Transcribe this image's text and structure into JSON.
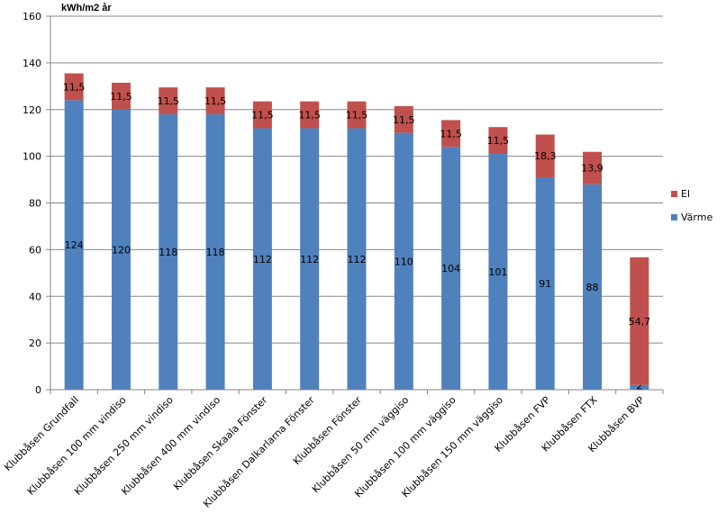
{
  "chart_data": {
    "type": "bar",
    "stacked": true,
    "ylabel": "kWh/m2 år",
    "ylim": [
      0,
      160
    ],
    "yticks": [
      "0",
      "20",
      "40",
      "60",
      "80",
      "100",
      "120",
      "140",
      "160"
    ],
    "grid": true,
    "legend_position": "right",
    "categories": [
      "Klubbåsen Grundfall",
      "Klubbåsen 100 mm vindiso",
      "Klubbåsen 250 mm vindiso",
      "Klubbåsen 400 mm vindiso",
      "Klubbåsen Skaala Fönster",
      "Klubbåsen Dalkarlarna Fönster",
      "Klubbåsen Fönster",
      "Klubbåsen 50 mm väggiso",
      "Klubbåsen 100 mm väggiso",
      "Klubbåsen 150 mm väggiso",
      "Klubbåsen FVP",
      "Klubbåsen FTX",
      "Klubbåsen BVP"
    ],
    "series": [
      {
        "name": "Värme",
        "color": "#4F81BD",
        "values": [
          124,
          120,
          118,
          118,
          112,
          112,
          112,
          110,
          104,
          101,
          91,
          88,
          2
        ],
        "labels": [
          "124",
          "120",
          "118",
          "118",
          "112",
          "112",
          "112",
          "110",
          "104",
          "101",
          "91",
          "88",
          "2"
        ]
      },
      {
        "name": "El",
        "color": "#C0504D",
        "values": [
          11.5,
          11.5,
          11.5,
          11.5,
          11.5,
          11.5,
          11.5,
          11.5,
          11.5,
          11.5,
          18.3,
          13.9,
          54.7
        ],
        "labels": [
          "11,5",
          "11,5",
          "11,5",
          "11,5",
          "11,5",
          "11,5",
          "11,5",
          "11,5",
          "11,5",
          "11,5",
          "18,3",
          "13,9",
          "54,7"
        ]
      }
    ],
    "legend_order": [
      "El",
      "Värme"
    ]
  }
}
